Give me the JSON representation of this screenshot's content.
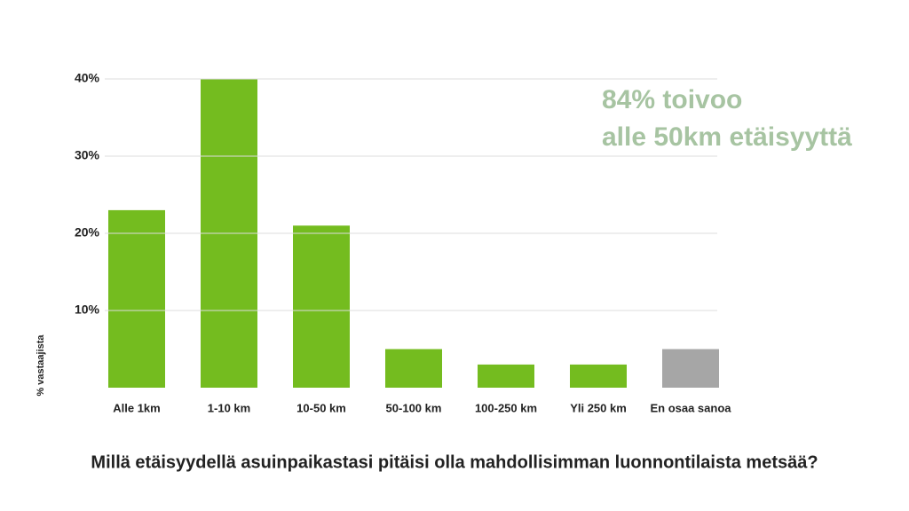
{
  "chart_data": {
    "type": "bar",
    "title": "Millä etäisyydellä asuinpaikastasi pitäisi olla mahdollisimman luonnontilaista metsää?",
    "y_label": "% vastaajista",
    "annotation": [
      "84% toivoo",
      "alle 50km etäisyyttä"
    ],
    "categories": [
      "Alle 1km",
      "1-10 km",
      "10-50 km",
      "50-100 km",
      "100-250 km",
      "Yli 250 km",
      "En osaa sanoa"
    ],
    "values": [
      23,
      40,
      21,
      5,
      3,
      3,
      5
    ],
    "colors": [
      "#74bc1f",
      "#74bc1f",
      "#74bc1f",
      "#74bc1f",
      "#74bc1f",
      "#74bc1f",
      "#a6a6a6"
    ],
    "ylim": [
      0,
      40
    ],
    "yticks": [
      {
        "value": 10,
        "label": "10%"
      },
      {
        "value": 20,
        "label": "20%"
      },
      {
        "value": 30,
        "label": "30%"
      },
      {
        "value": 40,
        "label": "40%"
      }
    ],
    "grid": true
  }
}
